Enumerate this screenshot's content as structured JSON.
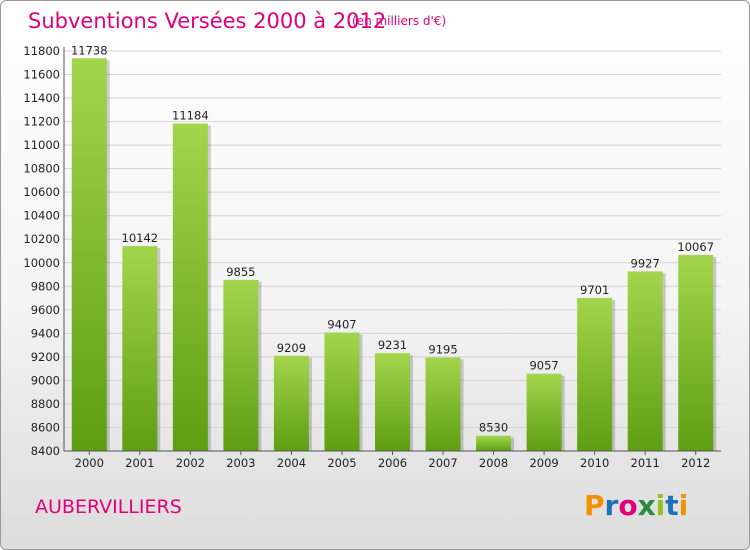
{
  "header": {
    "title": "Subventions Versées 2000 à 2012",
    "unit": "(en milliers d'€)"
  },
  "footer": {
    "commune": "AUBERVILLIERS",
    "logo": {
      "text": "Proxiti",
      "letter_colors": [
        "#f39200",
        "#1d71b8",
        "#e2007a",
        "#2b8a3e",
        "#95c11f",
        "#1d71b8",
        "#f39200"
      ]
    }
  },
  "colors": {
    "accent": "#e2007a",
    "bar_top": "#a3d54c",
    "bar_bottom": "#5e9e12"
  },
  "chart_data": {
    "type": "bar",
    "categories": [
      "2000",
      "2001",
      "2002",
      "2003",
      "2004",
      "2005",
      "2006",
      "2007",
      "2008",
      "2009",
      "2010",
      "2011",
      "2012"
    ],
    "values": [
      11738,
      10142,
      11184,
      9855,
      9209,
      9407,
      9231,
      9195,
      8530,
      9057,
      9701,
      9927,
      10067
    ],
    "title": "Subventions Versées 2000 à 2012",
    "ylim": [
      8400,
      11800
    ],
    "yticks": [
      8400,
      8600,
      8800,
      9000,
      9200,
      9400,
      9600,
      9800,
      10000,
      10200,
      10400,
      10600,
      10800,
      11000,
      11200,
      11400,
      11600,
      11800
    ],
    "grid": true,
    "legend": "none"
  }
}
